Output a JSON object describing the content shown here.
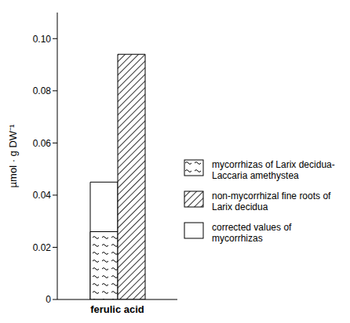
{
  "chart_data": {
    "type": "bar",
    "categories": [
      "ferulic acid"
    ],
    "ylabel": "µmol · g DW⁻¹",
    "series": [
      {
        "name": "mycorrhizas of Larix decidua-Laccaria amethystea",
        "color": "#000000",
        "values": [
          0.026
        ]
      },
      {
        "name": "non-mycorrhizal fine roots of Larix decidua",
        "color": "#000000",
        "values": [
          0.094
        ]
      },
      {
        "name": "corrected values of mycorrhizas",
        "color": "#000000",
        "values": [
          0.045
        ]
      }
    ],
    "ylim": [
      0,
      0.11
    ],
    "yticks": [
      0,
      0.02,
      0.04,
      0.06,
      0.08,
      {
        "value": 0.1,
        "label": "0.10"
      }
    ],
    "legend": "right",
    "grid": false
  }
}
